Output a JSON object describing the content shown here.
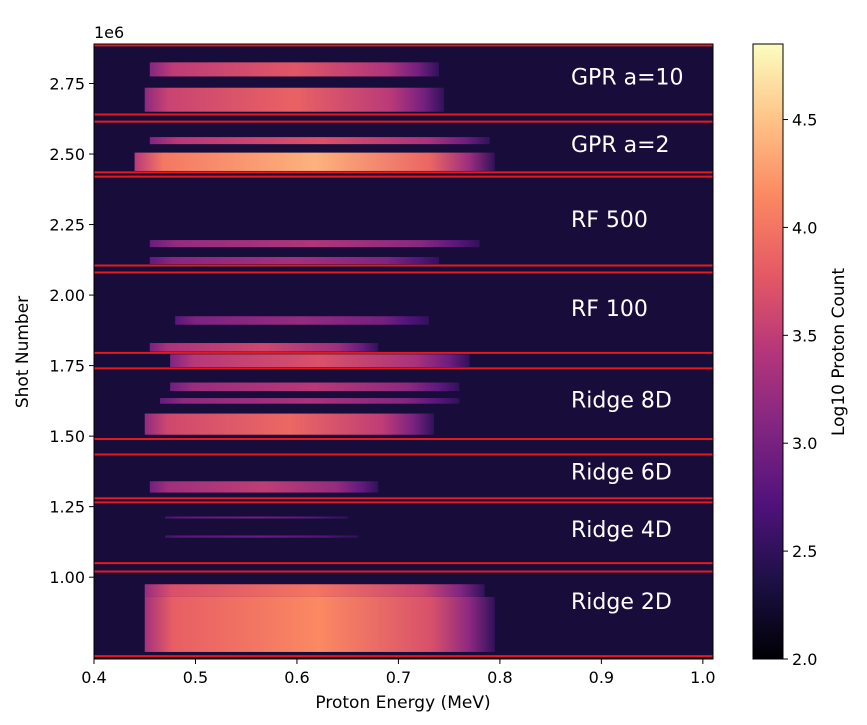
{
  "chart_data": {
    "type": "heatmap",
    "xlabel": "Proton Energy (MeV)",
    "ylabel": "Shot Number",
    "y_offset_text": "1e6",
    "xlim": [
      0.4,
      1.01
    ],
    "ylim": [
      710000,
      2890000
    ],
    "x_ticks": [
      {
        "value": 0.4,
        "label": "0.4"
      },
      {
        "value": 0.5,
        "label": "0.5"
      },
      {
        "value": 0.6,
        "label": "0.6"
      },
      {
        "value": 0.7,
        "label": "0.7"
      },
      {
        "value": 0.8,
        "label": "0.8"
      },
      {
        "value": 0.9,
        "label": "0.9"
      },
      {
        "value": 1.0,
        "label": "1.0"
      }
    ],
    "y_ticks": [
      {
        "value": 1000000,
        "label": "1.00"
      },
      {
        "value": 1250000,
        "label": "1.25"
      },
      {
        "value": 1500000,
        "label": "1.50"
      },
      {
        "value": 1750000,
        "label": "1.75"
      },
      {
        "value": 2000000,
        "label": "2.00"
      },
      {
        "value": 2250000,
        "label": "2.25"
      },
      {
        "value": 2500000,
        "label": "2.50"
      },
      {
        "value": 2750000,
        "label": "2.75"
      }
    ],
    "colorbar": {
      "label": "Log10 Proton Count",
      "range": [
        2.0,
        4.85
      ],
      "colormap": "magma",
      "ticks": [
        {
          "value": 2.0,
          "label": "2.0"
        },
        {
          "value": 2.5,
          "label": "2.5"
        },
        {
          "value": 3.0,
          "label": "3.0"
        },
        {
          "value": 3.5,
          "label": "3.5"
        },
        {
          "value": 4.0,
          "label": "4.0"
        },
        {
          "value": 4.5,
          "label": "4.5"
        }
      ]
    },
    "background_value": 2.3,
    "boundary_lines": [
      2885000,
      2640000,
      2615000,
      2435000,
      2420000,
      2105000,
      2080000,
      1795000,
      1740000,
      1490000,
      1435000,
      1280000,
      1265000,
      1050000,
      1020000,
      720000
    ],
    "boundary_color": "#e41a1c",
    "group_labels": [
      {
        "text": "GPR a=10",
        "y": 2775000
      },
      {
        "text": "GPR a=2",
        "y": 2535000
      },
      {
        "text": "RF 500",
        "y": 2270000
      },
      {
        "text": "RF 100",
        "y": 1955000
      },
      {
        "text": "Ridge 8D",
        "y": 1630000
      },
      {
        "text": "Ridge 6D",
        "y": 1375000
      },
      {
        "text": "Ridge 4D",
        "y": 1170000
      },
      {
        "text": "Ridge 2D",
        "y": 915000
      }
    ],
    "bands": [
      {
        "y_top": 2825000,
        "y_bottom": 2775000,
        "x_start": 0.455,
        "x_end": 0.74,
        "peak": 3.75
      },
      {
        "y_top": 2735000,
        "y_bottom": 2650000,
        "x_start": 0.45,
        "x_end": 0.745,
        "peak": 3.85
      },
      {
        "y_top": 2560000,
        "y_bottom": 2535000,
        "x_start": 0.455,
        "x_end": 0.79,
        "peak": 3.7
      },
      {
        "y_top": 2505000,
        "y_bottom": 2440000,
        "x_start": 0.44,
        "x_end": 0.795,
        "peak": 4.4
      },
      {
        "y_top": 2195000,
        "y_bottom": 2170000,
        "x_start": 0.455,
        "x_end": 0.78,
        "peak": 3.4
      },
      {
        "y_top": 2135000,
        "y_bottom": 2110000,
        "x_start": 0.455,
        "x_end": 0.74,
        "peak": 3.3
      },
      {
        "y_top": 1925000,
        "y_bottom": 1895000,
        "x_start": 0.48,
        "x_end": 0.73,
        "peak": 3.2
      },
      {
        "y_top": 1830000,
        "y_bottom": 1800000,
        "x_start": 0.455,
        "x_end": 0.68,
        "peak": 3.6
      },
      {
        "y_top": 1790000,
        "y_bottom": 1745000,
        "x_start": 0.475,
        "x_end": 0.77,
        "peak": 3.7
      },
      {
        "y_top": 1690000,
        "y_bottom": 1660000,
        "x_start": 0.475,
        "x_end": 0.76,
        "peak": 3.45
      },
      {
        "y_top": 1635000,
        "y_bottom": 1615000,
        "x_start": 0.465,
        "x_end": 0.76,
        "peak": 3.35
      },
      {
        "y_top": 1580000,
        "y_bottom": 1505000,
        "x_start": 0.45,
        "x_end": 0.735,
        "peak": 3.9
      },
      {
        "y_top": 1340000,
        "y_bottom": 1300000,
        "x_start": 0.455,
        "x_end": 0.68,
        "peak": 3.5
      },
      {
        "y_top": 1215000,
        "y_bottom": 1208000,
        "x_start": 0.47,
        "x_end": 0.65,
        "peak": 2.95
      },
      {
        "y_top": 1148000,
        "y_bottom": 1140000,
        "x_start": 0.47,
        "x_end": 0.66,
        "peak": 2.9
      },
      {
        "y_top": 975000,
        "y_bottom": 930000,
        "x_start": 0.45,
        "x_end": 0.785,
        "peak": 4.0
      },
      {
        "y_top": 930000,
        "y_bottom": 735000,
        "x_start": 0.45,
        "x_end": 0.795,
        "peak": 4.15
      }
    ]
  }
}
